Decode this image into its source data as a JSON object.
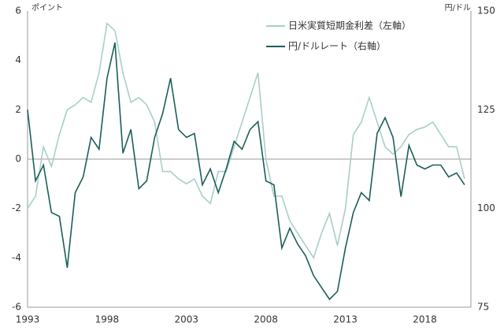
{
  "chart_data": {
    "type": "line",
    "y_unit_label": "ポイント",
    "y2_unit_label": "円/ドル",
    "x": [
      1993.0,
      1993.5,
      1994.0,
      1994.5,
      1995.0,
      1995.5,
      1996.0,
      1996.5,
      1997.0,
      1997.5,
      1998.0,
      1998.5,
      1999.0,
      1999.5,
      2000.0,
      2000.5,
      2001.0,
      2001.5,
      2002.0,
      2002.5,
      2003.0,
      2003.5,
      2004.0,
      2004.5,
      2005.0,
      2005.5,
      2006.0,
      2006.5,
      2007.0,
      2007.5,
      2008.0,
      2008.5,
      2009.0,
      2009.5,
      2010.0,
      2010.5,
      2011.0,
      2011.5,
      2012.0,
      2012.5,
      2013.0,
      2013.5,
      2014.0,
      2014.5,
      2015.0,
      2015.5,
      2016.0,
      2016.5,
      2017.0,
      2017.5,
      2018.0,
      2018.5,
      2019.0,
      2019.5,
      2020.0,
      2020.5
    ],
    "series": [
      {
        "name": "日米実質短期金利差（左軸）",
        "color": "#a9cec8",
        "axis": "y",
        "values": [
          -2.0,
          -1.5,
          0.5,
          -0.3,
          1.0,
          2.0,
          2.2,
          2.5,
          2.3,
          3.5,
          5.5,
          5.2,
          3.5,
          2.3,
          2.5,
          2.2,
          1.5,
          -0.5,
          -0.5,
          -0.8,
          -1.0,
          -0.8,
          -1.5,
          -1.8,
          -0.5,
          -0.5,
          0.5,
          1.5,
          2.5,
          3.5,
          0.0,
          -1.5,
          -1.5,
          -2.5,
          -3.0,
          -3.5,
          -4.0,
          -3.0,
          -2.2,
          -3.5,
          -2.0,
          1.0,
          1.5,
          2.5,
          1.5,
          0.5,
          0.2,
          0.5,
          1.0,
          1.2,
          1.3,
          1.5,
          1.0,
          0.5,
          0.5,
          -0.8
        ]
      },
      {
        "name": "円/ドルレート（右軸）",
        "color": "#1b5e59",
        "axis": "y2",
        "values": [
          125,
          107,
          111,
          99,
          98,
          85,
          104,
          108,
          118,
          115,
          133,
          142,
          114,
          120,
          105,
          107,
          118,
          124,
          133,
          120,
          118,
          119,
          106,
          110,
          104,
          110,
          117,
          115,
          120,
          122,
          107,
          106,
          90,
          95,
          91,
          88,
          83,
          80,
          77,
          79,
          90,
          99,
          104,
          102,
          119,
          123,
          118,
          103,
          116,
          111,
          110,
          111,
          111,
          108,
          109,
          106
        ]
      }
    ],
    "xlim": [
      1993,
      2020.9
    ],
    "xticks": [
      1993,
      1998,
      2003,
      2008,
      2013,
      2018
    ],
    "ylim": [
      -6,
      6
    ],
    "yticks": [
      -6,
      -4,
      -2,
      0,
      2,
      4,
      6
    ],
    "y2lim": [
      75,
      150
    ],
    "y2ticks": [
      75,
      100,
      125,
      150
    ],
    "negative_tick_color": "#c0392b"
  }
}
